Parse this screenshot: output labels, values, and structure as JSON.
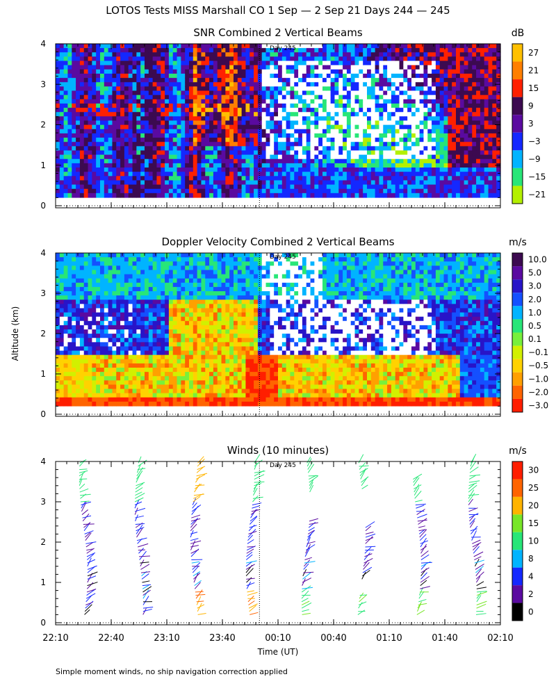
{
  "figure": {
    "title": "LOTOS Tests MISS Marshall CO   1 Sep —  2 Sep 21 Days 244 — 245",
    "ylabel": "Altitude (km)",
    "xlabel": "Time (UT)",
    "footnote": "Simple moment winds, no ship navigation correction applied",
    "day_marker_label": "Day 245",
    "x_ticks": [
      "22:10",
      "22:40",
      "23:10",
      "23:40",
      "00:10",
      "00:40",
      "01:10",
      "01:40",
      "02:10"
    ],
    "y_ticks": [
      "0",
      "1",
      "2",
      "3",
      "4"
    ],
    "x_range": [
      "22:10",
      "02:10"
    ],
    "day_boundary": "00:00",
    "y_range_km": [
      0,
      4
    ]
  },
  "chart_data": [
    {
      "type": "heatmap",
      "title": "SNR Combined 2 Vertical Beams",
      "unit": "dB",
      "colorbar_labels": [
        "27",
        "21",
        "15",
        "9",
        "3",
        "−3",
        "−9",
        "−15",
        "−21"
      ],
      "colorbar_colors": [
        "#ffc000",
        "#ff7f00",
        "#ff2000",
        "#3c0a50",
        "#5a0aa0",
        "#1428ff",
        "#00b4ff",
        "#28e678",
        "#b4f000"
      ],
      "pattern": "low_snr_before_day_boundary_high_snr_white_after",
      "ylim": [
        0,
        4
      ]
    },
    {
      "type": "heatmap",
      "title": "Doppler Velocity Combined 2 Vertical Beams",
      "unit": "m/s",
      "colorbar_labels": [
        "10.0",
        "5.0",
        "3.0",
        "2.0",
        "1.0",
        "0.5",
        "0.1",
        "−0.1",
        "−0.5",
        "−1.0",
        "−2.0",
        "−3.0"
      ],
      "colorbar_colors": [
        "#3c0a50",
        "#5a0aa0",
        "#2814c8",
        "#1450ff",
        "#00b4ff",
        "#28e678",
        "#78f03c",
        "#d2f000",
        "#ffd200",
        "#ffa000",
        "#ff6400",
        "#ff1e00"
      ],
      "pattern": "upward_blue_high_altitudes_downward_orange_below_2km",
      "ylim": [
        0,
        4
      ]
    },
    {
      "type": "scatter",
      "title": "Winds (10 minutes)",
      "unit": "m/s",
      "colorbar_labels": [
        "30",
        "25",
        "20",
        "15",
        "10",
        "8",
        "4",
        "2",
        "0"
      ],
      "colorbar_colors": [
        "#ff1e00",
        "#ff6400",
        "#ffb400",
        "#78e628",
        "#28e678",
        "#00b4ff",
        "#1428ff",
        "#5a0aa0",
        "#000000"
      ],
      "profile_times": [
        "22:25",
        "22:55",
        "23:25",
        "23:55",
        "00:25",
        "00:55",
        "01:25",
        "01:55"
      ],
      "ylim": [
        0,
        4
      ]
    }
  ]
}
